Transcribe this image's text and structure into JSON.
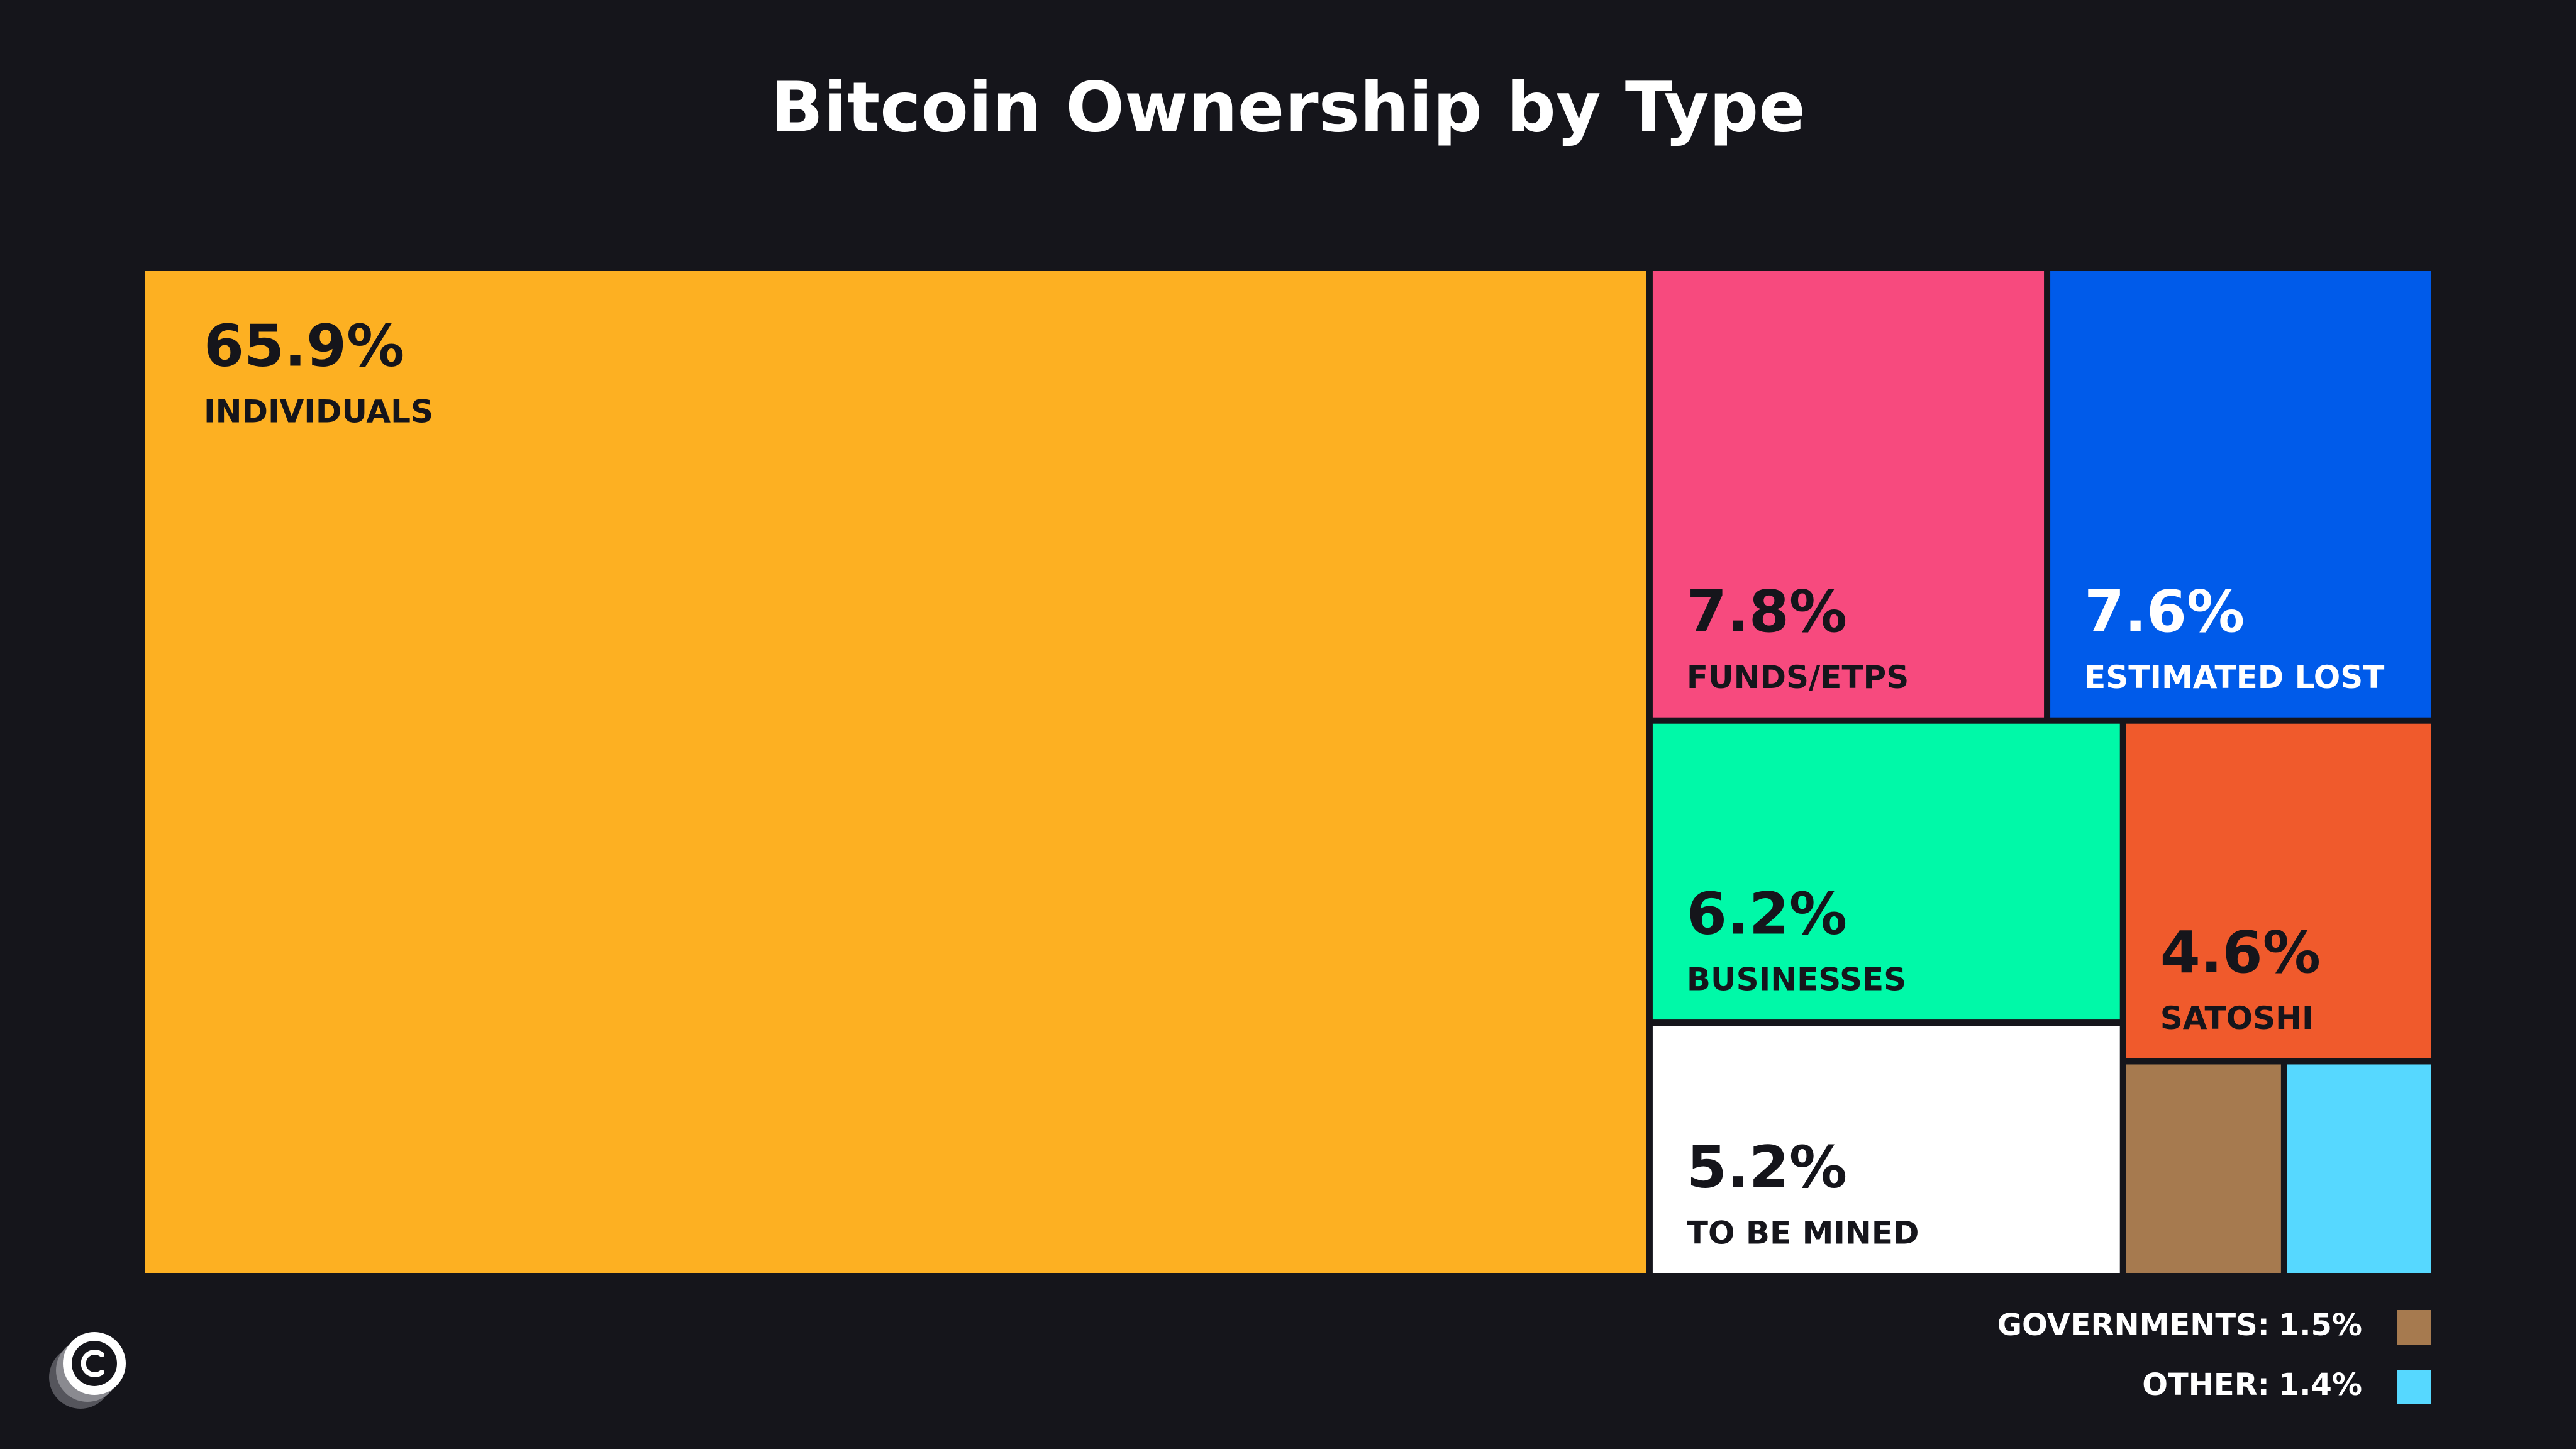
{
  "chart_data": {
    "type": "treemap",
    "title": "Bitcoin Ownership by Type",
    "series": [
      {
        "categories": [
          "INDIVIDUALS",
          "FUNDS/ETPS",
          "ESTIMATED LOST",
          "BUSINESSES",
          "TO BE MINED",
          "SATOSHI",
          "GOVERNMENTS:",
          "OTHER:"
        ],
        "values": [
          65.9,
          7.8,
          7.6,
          6.2,
          5.2,
          4.6,
          1.5,
          1.4
        ],
        "value_labels": [
          "65.9%",
          "7.8%",
          "7.6%",
          "6.2%",
          "5.2%",
          "4.6%",
          "1.5%",
          "1.4%"
        ],
        "colors": [
          "#FDB022",
          "#F74A7E",
          "#005BEA",
          "#00F9A8",
          "#FFFFFF",
          "#F05A2C",
          "#A67A4F",
          "#56D8FF"
        ]
      }
    ]
  }
}
